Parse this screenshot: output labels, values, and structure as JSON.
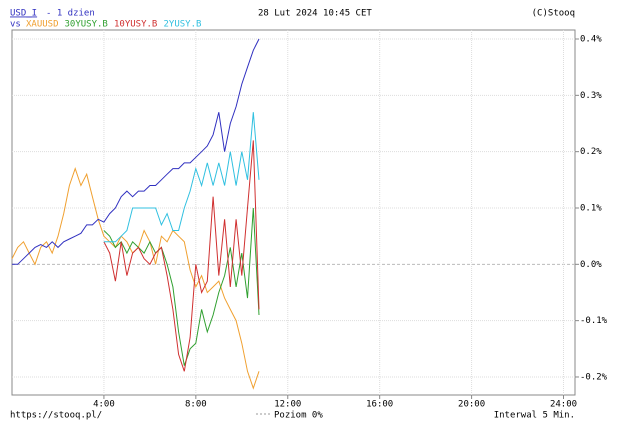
{
  "chart_data": {
    "type": "line",
    "period": "- 1 dzien",
    "vs_label": "vs",
    "date_label": "28 Lut 2024 10:45 CET",
    "copyright": "(C)Stooq",
    "x": [
      0,
      0.25,
      0.5,
      0.75,
      1,
      1.25,
      1.5,
      1.75,
      2,
      2.25,
      2.5,
      2.75,
      3,
      3.25,
      3.5,
      3.75,
      4,
      4.25,
      4.5,
      4.75,
      5,
      5.25,
      5.5,
      5.75,
      6,
      6.25,
      6.5,
      6.75,
      7,
      7.25,
      7.5,
      7.75,
      8,
      8.25,
      8.5,
      8.75,
      9,
      9.25,
      9.5,
      9.75,
      10,
      10.25,
      10.5,
      10.75
    ],
    "series": [
      {
        "name": "USD_I",
        "color": "#3030c0",
        "values": [
          0,
          0,
          0.01,
          0.02,
          0.03,
          0.035,
          0.03,
          0.04,
          0.03,
          0.04,
          0.045,
          0.05,
          0.055,
          0.07,
          0.07,
          0.08,
          0.075,
          0.09,
          0.1,
          0.12,
          0.13,
          0.12,
          0.13,
          0.13,
          0.14,
          0.14,
          0.15,
          0.16,
          0.17,
          0.17,
          0.18,
          0.18,
          0.19,
          0.2,
          0.21,
          0.23,
          0.27,
          0.2,
          0.25,
          0.28,
          0.32,
          0.35,
          0.38,
          0.4
        ]
      },
      {
        "name": "XAUUSD",
        "color": "#f0a030",
        "values": [
          0.01,
          0.03,
          0.04,
          0.02,
          0,
          0.03,
          0.04,
          0.02,
          0.05,
          0.09,
          0.14,
          0.17,
          0.14,
          0.16,
          0.12,
          0.08,
          0.05,
          0.04,
          0.03,
          0.05,
          0.04,
          0.02,
          0.03,
          0.06,
          0.04,
          0,
          0.05,
          0.04,
          0.06,
          0.05,
          0.04,
          -0.01,
          -0.04,
          -0.02,
          -0.05,
          -0.04,
          -0.03,
          -0.06,
          -0.08,
          -0.1,
          -0.14,
          -0.19,
          -0.22,
          -0.19
        ]
      },
      {
        "name": "30YUSY.B",
        "color": "#30a030",
        "values": [
          null,
          null,
          null,
          null,
          null,
          null,
          null,
          null,
          null,
          null,
          null,
          null,
          null,
          null,
          null,
          null,
          0.06,
          0.05,
          0.03,
          0.04,
          0.02,
          0.04,
          0.03,
          0.02,
          0.04,
          0.02,
          0.03,
          0,
          -0.04,
          -0.12,
          -0.18,
          -0.15,
          -0.14,
          -0.08,
          -0.12,
          -0.09,
          -0.05,
          -0.02,
          0.03,
          -0.04,
          0.02,
          -0.06,
          0.1,
          -0.09
        ]
      },
      {
        "name": "10YUSY.B",
        "color": "#d03030",
        "values": [
          null,
          null,
          null,
          null,
          null,
          null,
          null,
          null,
          null,
          null,
          null,
          null,
          null,
          null,
          null,
          null,
          0.04,
          0.02,
          -0.03,
          0.04,
          -0.02,
          0.02,
          0.03,
          0.01,
          0,
          0.02,
          0.03,
          -0.02,
          -0.08,
          -0.16,
          -0.19,
          -0.13,
          0,
          -0.05,
          -0.03,
          0.12,
          -0.02,
          0.08,
          -0.04,
          0.08,
          -0.02,
          0.1,
          0.22,
          -0.08
        ]
      },
      {
        "name": "2YUSY.B",
        "color": "#30c0e0",
        "values": [
          null,
          null,
          null,
          null,
          null,
          null,
          null,
          null,
          null,
          null,
          null,
          null,
          null,
          null,
          null,
          null,
          0.04,
          0.04,
          0.04,
          0.05,
          0.06,
          0.1,
          0.1,
          0.1,
          0.1,
          0.1,
          0.07,
          0.09,
          0.06,
          0.06,
          0.1,
          0.13,
          0.17,
          0.14,
          0.18,
          0.14,
          0.18,
          0.14,
          0.2,
          0.14,
          0.2,
          0.15,
          0.27,
          0.15
        ]
      }
    ],
    "xlim": [
      0,
      24.5
    ],
    "xticks": [
      {
        "value": 4,
        "label": "4:00"
      },
      {
        "value": 8,
        "label": "8:00"
      },
      {
        "value": 12,
        "label": "12:00"
      },
      {
        "value": 16,
        "label": "16:00"
      },
      {
        "value": 20,
        "label": "20:00"
      },
      {
        "value": 24,
        "label": "24:00"
      }
    ],
    "ylim": [
      -0.232,
      0.416
    ],
    "yticks": [
      {
        "value": 0.4,
        "label": "0.4%"
      },
      {
        "value": 0.3,
        "label": "0.3%"
      },
      {
        "value": 0.2,
        "label": "0.2%"
      },
      {
        "value": 0.1,
        "label": "0.1%"
      },
      {
        "value": 0,
        "label": "0.0%"
      },
      {
        "value": -0.1,
        "label": "-0.1%"
      },
      {
        "value": -0.2,
        "label": "-0.2%"
      }
    ],
    "grid": true,
    "footer": {
      "url": "https://stooq.pl/",
      "level": "Poziom 0%",
      "interval": "Interwal 5 Min."
    }
  }
}
